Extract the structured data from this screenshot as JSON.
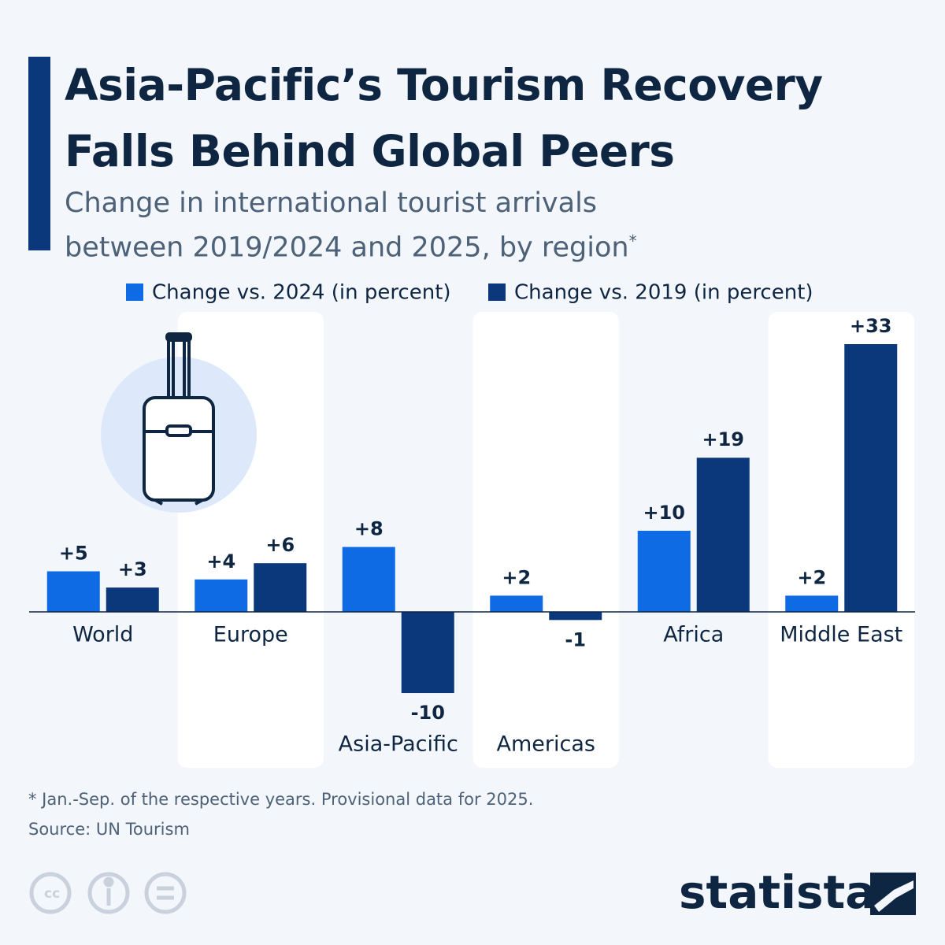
{
  "chart_data": {
    "type": "bar",
    "title": "Asia-Pacific’s Tourism Recovery Falls Behind Global Peers",
    "subtitle": "Change in international tourist arrivals between 2019/2024 and 2025, by region",
    "subtitle_note": "*",
    "categories": [
      "World",
      "Europe",
      "Asia-Pacific",
      "Americas",
      "Africa",
      "Middle East"
    ],
    "series": [
      {
        "name": "Change vs. 2024 (in percent)",
        "color": "#0e6be4",
        "values": [
          5,
          4,
          8,
          2,
          10,
          2
        ],
        "value_labels": [
          "+5",
          "+4",
          "+8",
          "+2",
          "+10",
          "+2"
        ]
      },
      {
        "name": "Change vs. 2019 (in percent)",
        "color": "#0b387a",
        "values": [
          3,
          6,
          -10,
          -1,
          19,
          33
        ],
        "value_labels": [
          "+3",
          "+6",
          "-10",
          "-1",
          "+19",
          "+33"
        ]
      }
    ],
    "footnote": "* Jan.-Sep. of the respective years. Provisional data for 2025.",
    "source": "Source: UN Tourism",
    "brand": "statista"
  }
}
